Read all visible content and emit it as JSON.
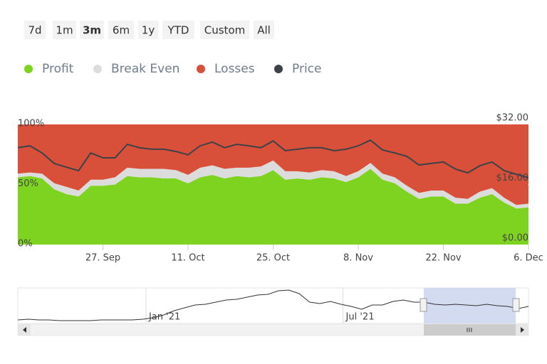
{
  "range_selector": {
    "buttons": [
      "7d",
      "1m",
      "3m",
      "6m",
      "1y",
      "YTD",
      "Custom",
      "All"
    ],
    "selected": 2
  },
  "chart_data": {
    "type": "area",
    "stacked": true,
    "categories": [
      null,
      null,
      null,
      null,
      null,
      null,
      null,
      "27. Sep",
      null,
      null,
      null,
      null,
      null,
      null,
      "11. Oct",
      null,
      null,
      null,
      null,
      null,
      null,
      "25. Oct",
      null,
      null,
      null,
      null,
      null,
      null,
      "8. Nov",
      null,
      null,
      null,
      null,
      null,
      null,
      "22. Nov",
      null,
      null,
      null,
      null,
      null,
      null,
      "6. Dec"
    ],
    "series": [
      {
        "name": "Profit",
        "color": "#7ed321",
        "values": [
          56,
          57,
          55,
          46,
          42,
          40,
          49,
          49,
          50,
          57,
          56,
          56,
          55,
          55,
          51,
          56,
          58,
          55,
          57,
          56,
          57,
          62,
          54,
          55,
          54,
          56,
          55,
          52,
          56,
          63,
          54,
          51,
          44,
          38,
          40,
          40,
          34,
          34,
          39,
          42,
          35,
          30,
          31
        ]
      },
      {
        "name": "Break Even",
        "color": "#dcdcdc",
        "values": [
          3,
          3,
          4,
          5,
          6,
          5,
          5,
          5,
          6,
          7,
          7,
          7,
          8,
          7,
          7,
          8,
          8,
          8,
          7,
          8,
          8,
          8,
          7,
          6,
          6,
          6,
          6,
          5,
          5,
          5,
          5,
          5,
          5,
          5,
          5,
          5,
          5,
          4,
          5,
          5,
          4,
          3,
          3
        ]
      },
      {
        "name": "Losses",
        "color": "#d9503a",
        "values": [
          41,
          40,
          41,
          49,
          52,
          55,
          46,
          46,
          44,
          36,
          37,
          37,
          37,
          38,
          42,
          36,
          34,
          37,
          36,
          36,
          35,
          30,
          39,
          39,
          40,
          38,
          39,
          43,
          39,
          32,
          41,
          44,
          51,
          57,
          55,
          55,
          61,
          62,
          56,
          53,
          61,
          67,
          66
        ]
      },
      {
        "name": "Price",
        "color": "#3d4249",
        "axis": "y2",
        "type": "line",
        "values": [
          25.8,
          26.3,
          24.4,
          21.6,
          20.6,
          19.7,
          24.4,
          23.1,
          23.1,
          26.7,
          25.8,
          25.4,
          25.4,
          24.8,
          23.9,
          26.3,
          27.3,
          25.8,
          26.7,
          26.3,
          25.8,
          27.6,
          25.0,
          25.4,
          25.8,
          25.8,
          25.0,
          25.4,
          26.3,
          27.8,
          25.2,
          24.4,
          23.5,
          21.2,
          21.6,
          22.0,
          20.1,
          19.1,
          21.0,
          22.0,
          19.7,
          18.7,
          17.8
        ]
      }
    ],
    "ylim": [
      0,
      100
    ],
    "yticks": [
      {
        "value": 0,
        "label": "0%"
      },
      {
        "value": 50,
        "label": "50%"
      },
      {
        "value": 100,
        "label": "100%"
      }
    ],
    "y2lim": [
      0,
      32
    ],
    "y2ticks": [
      {
        "value": 0,
        "label": "$0.00"
      },
      {
        "value": 16,
        "label": "$16.00"
      },
      {
        "value": 32,
        "label": "$32.00"
      }
    ],
    "legend": "top-left",
    "navigator": {
      "values": [
        5,
        6,
        5,
        5,
        4,
        4,
        4,
        4,
        5,
        5,
        5,
        5,
        6,
        8,
        12,
        18,
        22,
        26,
        27,
        30,
        33,
        34,
        37,
        40,
        41,
        46,
        47,
        42,
        30,
        28,
        31,
        27,
        24,
        20,
        26,
        26,
        31,
        33,
        30,
        30,
        27,
        26,
        27,
        26,
        25,
        27,
        25,
        24,
        21,
        24
      ],
      "ylim": [
        0,
        50
      ],
      "xticks": [
        {
          "value": 12.3,
          "label": "Jan '21"
        },
        {
          "value": 31.2,
          "label": "Jul '21"
        }
      ],
      "color": "#333333"
    }
  }
}
